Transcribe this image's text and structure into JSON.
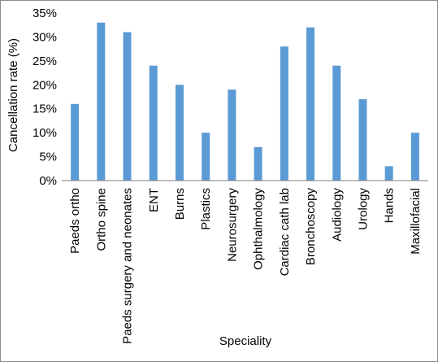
{
  "chart_data": {
    "type": "bar",
    "xlabel": "Speciality",
    "ylabel": "Cancellation rate (%)",
    "ylim": [
      0,
      35
    ],
    "y_ticks": [
      "0%",
      "5%",
      "10%",
      "15%",
      "20%",
      "25%",
      "30%",
      "35%"
    ],
    "grid": false,
    "categories": [
      "Paeds ortho",
      "Ortho spine",
      "Paeds surgery and neonates",
      "ENT",
      "Burns",
      "Plastics",
      "Neurosurgery",
      "Ophthalmology",
      "Cardiac cath lab",
      "Bronchoscopy",
      "Audiology",
      "Urology",
      "Hands",
      "Maxillofacial"
    ],
    "values": [
      16,
      33,
      31,
      24,
      20,
      10,
      19,
      7,
      28,
      32,
      24,
      17,
      3,
      10
    ],
    "colors": {
      "bar": "#5b9bd5",
      "axis": "#7f7f7f",
      "frame": "#8c8c8c"
    }
  }
}
